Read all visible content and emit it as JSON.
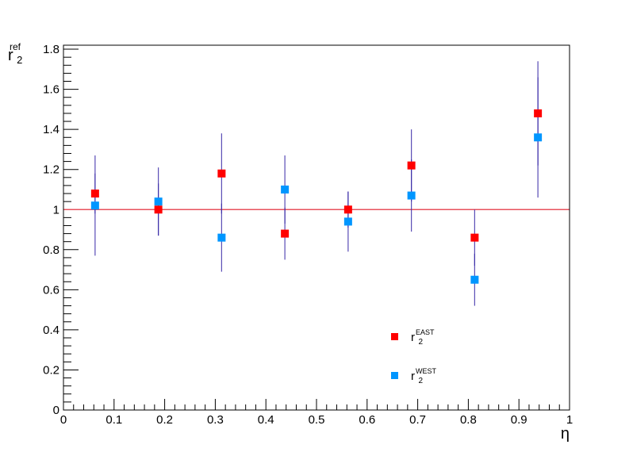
{
  "chart_data": {
    "type": "scatter",
    "title": "",
    "xlabel": "η",
    "ylabel": {
      "base": "r",
      "sub": "2",
      "sup": "ref"
    },
    "xlim": [
      0,
      1
    ],
    "ylim": [
      0,
      1.82
    ],
    "x_ticks": [
      0,
      0.1,
      0.2,
      0.3,
      0.4,
      0.5,
      0.6,
      0.7,
      0.8,
      0.9,
      1
    ],
    "x_tick_labels": [
      "0",
      "0.1",
      "0.2",
      "0.3",
      "0.4",
      "0.5",
      "0.6",
      "0.7",
      "0.8",
      "0.9",
      "1"
    ],
    "y_ticks": [
      0,
      0.2,
      0.4,
      0.6,
      0.8,
      1,
      1.2,
      1.4,
      1.6,
      1.8
    ],
    "y_tick_labels": [
      "0",
      "0.2",
      "0.4",
      "0.6",
      "0.8",
      "1",
      "1.2",
      "1.4",
      "1.6",
      "1.8"
    ],
    "reference_line": {
      "y": 1,
      "color": "#e8525c"
    },
    "grid": false,
    "legend_position": "bottom-center",
    "error_bar_color": "#3a2ca8",
    "series": [
      {
        "label": {
          "base": "r",
          "sub": "2",
          "sup": "EAST"
        },
        "color": "#ff0000",
        "points": [
          {
            "x": 0.0625,
            "y": 1.08,
            "yerr": 0.1
          },
          {
            "x": 0.1875,
            "y": 1.0,
            "yerr": 0.13
          },
          {
            "x": 0.3125,
            "y": 1.18,
            "yerr": 0.2
          },
          {
            "x": 0.4375,
            "y": 0.88,
            "yerr": 0.13
          },
          {
            "x": 0.5625,
            "y": 1.0,
            "yerr": 0.09
          },
          {
            "x": 0.6875,
            "y": 1.22,
            "yerr": 0.18
          },
          {
            "x": 0.8125,
            "y": 0.86,
            "yerr": 0.14
          },
          {
            "x": 0.9375,
            "y": 1.48,
            "yerr": 0.26
          }
        ]
      },
      {
        "label": {
          "base": "r",
          "sub": "2",
          "sup": "WEST"
        },
        "color": "#0096ff",
        "points": [
          {
            "x": 0.0625,
            "y": 1.02,
            "yerr": 0.25
          },
          {
            "x": 0.1875,
            "y": 1.04,
            "yerr": 0.17
          },
          {
            "x": 0.3125,
            "y": 0.86,
            "yerr": 0.17
          },
          {
            "x": 0.4375,
            "y": 1.1,
            "yerr": 0.17
          },
          {
            "x": 0.5625,
            "y": 0.94,
            "yerr": 0.15
          },
          {
            "x": 0.6875,
            "y": 1.07,
            "yerr": 0.18
          },
          {
            "x": 0.8125,
            "y": 0.65,
            "yerr": 0.13
          },
          {
            "x": 0.9375,
            "y": 1.36,
            "yerr": 0.3
          }
        ]
      }
    ]
  }
}
